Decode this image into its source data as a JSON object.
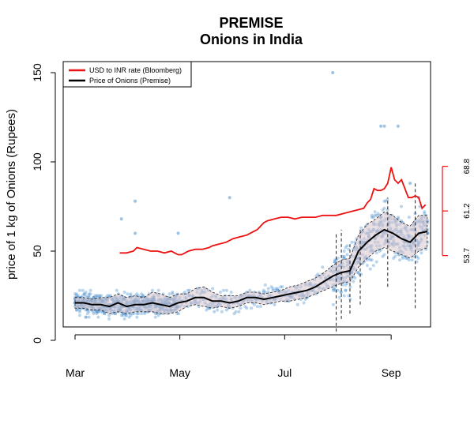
{
  "chart_data": {
    "type": "scatter",
    "title": "PREMISE",
    "subtitle": "Onions in India",
    "xlabel": "",
    "ylabel": "price of 1 kg of Onions (Rupees)",
    "ylim": [
      0,
      150
    ],
    "yticks": [
      "0",
      "50",
      "100",
      "150"
    ],
    "xticks": [
      "Mar",
      "May",
      "Jul",
      "Sep"
    ],
    "xlim_days": [
      0,
      206
    ],
    "xtick_days": [
      0,
      61,
      122,
      184
    ],
    "right_axis": {
      "label_color": "#ee1111",
      "ticks": [
        "53.7",
        "61.2",
        "68.8"
      ],
      "tick_values_left_scale": [
        47.5,
        72.5,
        97.5
      ]
    },
    "legend": {
      "position": "top-left",
      "items": [
        {
          "label": "USD to INR rate (Bloomberg)",
          "color": "#ee1111"
        },
        {
          "label": "Price of Onions (Premise)",
          "color": "#000000"
        }
      ]
    },
    "colors": {
      "points": "#3d87cc",
      "band": "#d9c5cc",
      "mean": "#000000",
      "fx": "#ee1111"
    },
    "series": [
      {
        "name": "USD to INR rate (Bloomberg)",
        "x": [
          26,
          30,
          34,
          36,
          40,
          44,
          48,
          52,
          56,
          58,
          60,
          62,
          64,
          66,
          70,
          74,
          78,
          80,
          84,
          88,
          92,
          96,
          100,
          104,
          106,
          108,
          110,
          112,
          116,
          120,
          124,
          128,
          132,
          136,
          140,
          144,
          148,
          152,
          156,
          160,
          164,
          168,
          170,
          172,
          174,
          176,
          178,
          180,
          182,
          184,
          186,
          188,
          190,
          192,
          194,
          196,
          198,
          200,
          202,
          204
        ],
        "y": [
          49,
          49,
          50,
          52,
          51,
          50,
          50,
          49,
          50,
          49,
          48,
          48,
          49,
          50,
          51,
          51,
          52,
          53,
          54,
          55,
          57,
          58,
          59,
          61,
          62,
          64,
          66,
          67,
          68,
          69,
          69,
          68,
          69,
          69,
          69,
          70,
          70,
          70,
          71,
          72,
          73,
          74,
          77,
          79,
          85,
          84,
          84,
          85,
          88,
          97,
          90,
          88,
          90,
          85,
          80,
          80,
          81,
          80,
          74,
          76
        ]
      },
      {
        "name": "Price of Onions (Premise)",
        "x": [
          0,
          5,
          10,
          15,
          20,
          25,
          30,
          35,
          40,
          45,
          50,
          55,
          60,
          65,
          70,
          75,
          80,
          85,
          90,
          95,
          100,
          105,
          110,
          115,
          120,
          125,
          130,
          135,
          140,
          145,
          150,
          155,
          160,
          165,
          170,
          175,
          180,
          185,
          190,
          195,
          200,
          205
        ],
        "y": [
          21,
          21,
          20,
          20,
          19,
          21,
          19,
          20,
          20,
          21,
          20,
          19,
          21,
          22,
          24,
          24,
          22,
          22,
          21,
          22,
          24,
          24,
          23,
          24,
          25,
          26,
          27,
          28,
          30,
          33,
          36,
          38,
          39,
          50,
          55,
          59,
          62,
          60,
          57,
          55,
          60,
          61
        ],
        "band_low": [
          18,
          18,
          17,
          17,
          15,
          16,
          15,
          16,
          16,
          16,
          15,
          15,
          16,
          19,
          20,
          19,
          18,
          19,
          18,
          19,
          21,
          21,
          20,
          21,
          22,
          22,
          23,
          24,
          26,
          28,
          30,
          32,
          33,
          41,
          46,
          50,
          52,
          50,
          48,
          46,
          50,
          52
        ],
        "band_high": [
          24,
          24,
          23,
          24,
          24,
          26,
          24,
          25,
          24,
          27,
          26,
          24,
          26,
          26,
          29,
          30,
          27,
          25,
          25,
          25,
          27,
          27,
          26,
          27,
          28,
          30,
          31,
          33,
          35,
          38,
          42,
          45,
          46,
          59,
          65,
          68,
          72,
          70,
          66,
          64,
          70,
          70
        ]
      }
    ],
    "dashed_spikes": [
      {
        "x": 152,
        "low": 5,
        "high": 60
      },
      {
        "x": 155,
        "low": 12,
        "high": 62
      },
      {
        "x": 160,
        "low": 15,
        "high": 55
      },
      {
        "x": 166,
        "low": 20,
        "high": 62
      },
      {
        "x": 182,
        "low": 30,
        "high": 80
      },
      {
        "x": 198,
        "low": 18,
        "high": 88
      }
    ]
  }
}
